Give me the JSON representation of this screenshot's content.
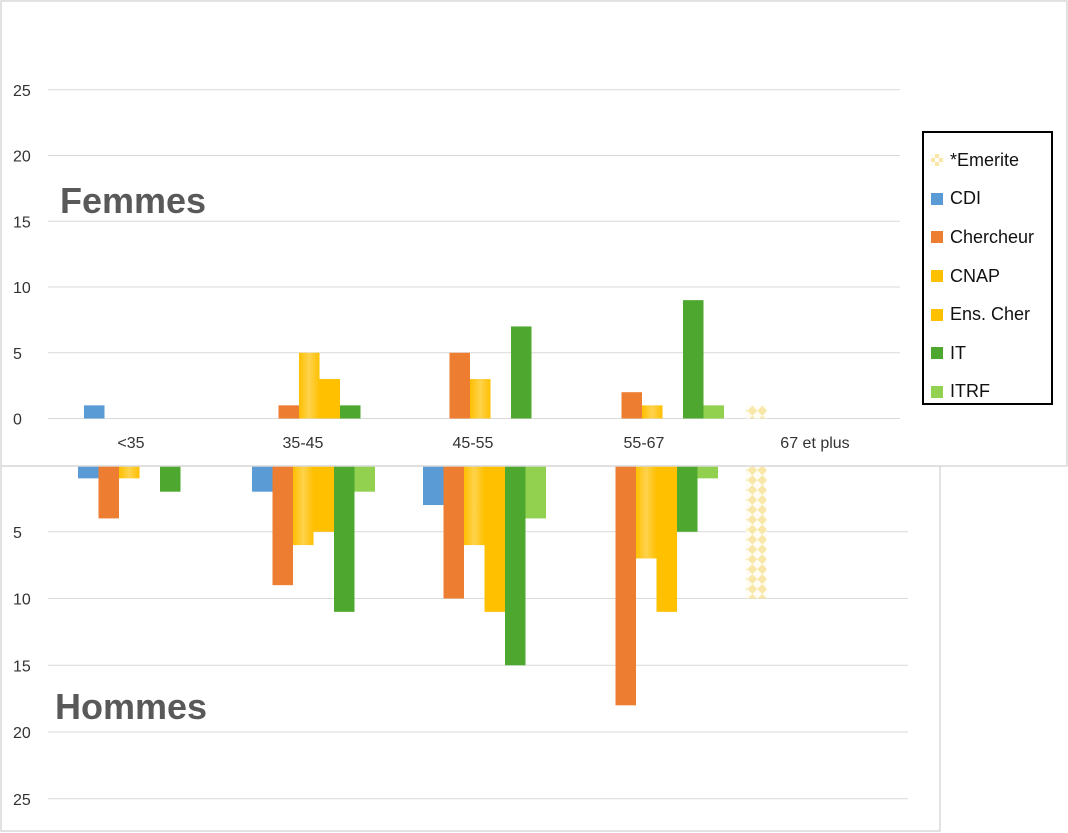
{
  "chart_data": [
    {
      "type": "bar",
      "title": "Femmes",
      "categories": [
        "<35",
        "35-45",
        "45-55",
        "55-67",
        "67 et plus"
      ],
      "series": [
        {
          "name": "*Emerite",
          "values": [
            0,
            0,
            0,
            0,
            1
          ]
        },
        {
          "name": "CDI",
          "values": [
            1,
            0,
            0,
            0,
            0
          ]
        },
        {
          "name": "Chercheur",
          "values": [
            0,
            1,
            5,
            2,
            0
          ]
        },
        {
          "name": "CNAP",
          "values": [
            0,
            5,
            3,
            1,
            0
          ]
        },
        {
          "name": "Ens. Cher",
          "values": [
            0,
            3,
            0,
            0,
            0
          ]
        },
        {
          "name": "IT",
          "values": [
            0,
            1,
            7,
            9,
            0
          ]
        },
        {
          "name": "ITRF",
          "values": [
            0,
            0,
            0,
            1,
            0
          ]
        }
      ],
      "yticks": [
        0,
        5,
        10,
        15,
        20,
        25
      ],
      "ylim": [
        0,
        25
      ],
      "grid": true,
      "legend": "right"
    },
    {
      "type": "bar",
      "title": "Hommes",
      "categories": [
        "<35",
        "35-45",
        "45-55",
        "55-67",
        "67 et plus"
      ],
      "inverted": true,
      "series": [
        {
          "name": "*Emerite",
          "values": [
            0,
            0,
            0,
            0,
            10
          ]
        },
        {
          "name": "CDI",
          "values": [
            1,
            2,
            3,
            0,
            0
          ]
        },
        {
          "name": "Chercheur",
          "values": [
            4,
            9,
            10,
            18,
            0
          ]
        },
        {
          "name": "CNAP",
          "values": [
            1,
            6,
            6,
            7,
            0
          ]
        },
        {
          "name": "Ens. Cher",
          "values": [
            0,
            5,
            11,
            11,
            0
          ]
        },
        {
          "name": "IT",
          "values": [
            2,
            11,
            15,
            5,
            0
          ]
        },
        {
          "name": "ITRF",
          "values": [
            0,
            2,
            4,
            1,
            0
          ]
        }
      ],
      "yticks": [
        5,
        10,
        15,
        20,
        25
      ],
      "ylim": [
        0,
        25
      ],
      "grid": true
    }
  ],
  "legend": {
    "items": [
      {
        "label": "*Emerite",
        "color": "#f8e7a8",
        "pattern": true
      },
      {
        "label": "CDI",
        "color": "#5b9bd5"
      },
      {
        "label": "Chercheur",
        "color": "#ed7d31"
      },
      {
        "label": "CNAP",
        "color": "#ffc000"
      },
      {
        "label": "Ens. Cher",
        "color": "#ffc000"
      },
      {
        "label": "IT",
        "color": "#4ea72e"
      },
      {
        "label": "ITRF",
        "color": "#92d050"
      }
    ]
  }
}
